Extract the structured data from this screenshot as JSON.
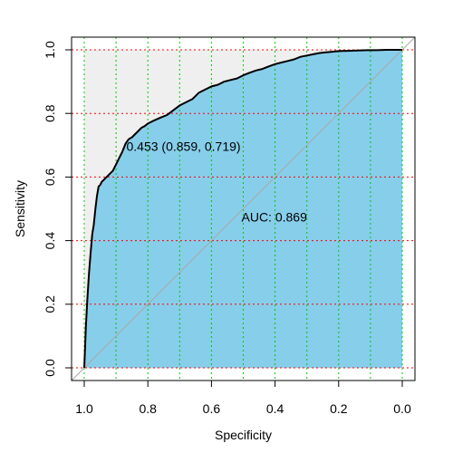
{
  "chart_data": {
    "type": "line",
    "xlabel": "Specificity",
    "ylabel": "Sensitivity",
    "xlim": [
      1.0,
      0.0
    ],
    "ylim": [
      0.0,
      1.0
    ],
    "x_reversed": true,
    "x_ticks": [
      1.0,
      0.8,
      0.6,
      0.4,
      0.2,
      0.0
    ],
    "x_tick_labels": [
      "1.0",
      "0.8",
      "0.6",
      "0.4",
      "0.2",
      "0.0"
    ],
    "y_ticks": [
      0.0,
      0.2,
      0.4,
      0.6,
      0.8,
      1.0
    ],
    "y_tick_labels": [
      "0.0",
      "0.2",
      "0.4",
      "0.6",
      "0.8",
      "1.0"
    ],
    "grid": true,
    "grid_x_every": 0.1,
    "grid_y_every": 0.2,
    "auc_label": "AUC: 0.869",
    "threshold_label": "0.453 (0.859, 0.719)",
    "colors": {
      "auc_fill": "#87ceeb",
      "upper_fill": "#efefef",
      "roc_line": "#000000",
      "diagonal": "#aaaaaa",
      "grid_x": "#00c800",
      "grid_y": "#ff0000"
    },
    "series": [
      {
        "specificity": [
          1.0,
          0.998,
          0.995,
          0.99,
          0.985,
          0.98,
          0.975,
          0.97,
          0.965,
          0.96,
          0.955,
          0.95,
          0.945,
          0.94,
          0.93,
          0.92,
          0.91,
          0.9,
          0.89,
          0.88,
          0.87,
          0.86,
          0.85,
          0.84,
          0.83,
          0.82,
          0.81,
          0.8,
          0.78,
          0.76,
          0.74,
          0.72,
          0.7,
          0.68,
          0.66,
          0.64,
          0.62,
          0.6,
          0.58,
          0.56,
          0.54,
          0.52,
          0.5,
          0.48,
          0.46,
          0.44,
          0.42,
          0.4,
          0.38,
          0.36,
          0.34,
          0.32,
          0.3,
          0.28,
          0.26,
          0.24,
          0.22,
          0.2,
          0.17,
          0.14,
          0.11,
          0.08,
          0.05,
          0.02,
          0.0
        ],
        "sensitivity": [
          0.0,
          0.05,
          0.13,
          0.22,
          0.3,
          0.36,
          0.42,
          0.45,
          0.5,
          0.54,
          0.57,
          0.575,
          0.585,
          0.59,
          0.6,
          0.61,
          0.62,
          0.64,
          0.66,
          0.68,
          0.705,
          0.719,
          0.725,
          0.735,
          0.745,
          0.755,
          0.76,
          0.768,
          0.778,
          0.787,
          0.795,
          0.81,
          0.825,
          0.835,
          0.845,
          0.865,
          0.875,
          0.885,
          0.89,
          0.9,
          0.905,
          0.91,
          0.92,
          0.928,
          0.935,
          0.94,
          0.948,
          0.955,
          0.96,
          0.965,
          0.97,
          0.978,
          0.982,
          0.986,
          0.99,
          0.992,
          0.994,
          0.996,
          0.997,
          0.998,
          0.999,
          0.999,
          1.0,
          1.0,
          1.0
        ]
      }
    ],
    "threshold_point": {
      "specificity": 0.859,
      "sensitivity": 0.719
    },
    "auc_label_position": {
      "specificity": 0.5,
      "sensitivity": 0.475
    }
  }
}
